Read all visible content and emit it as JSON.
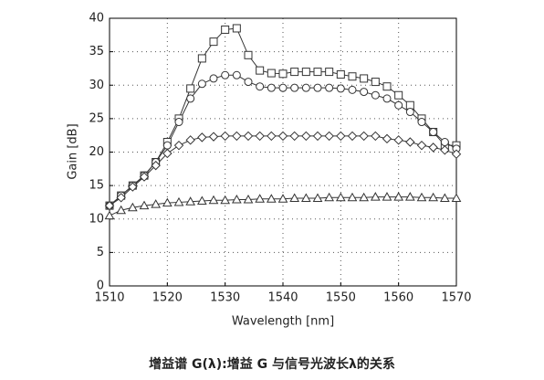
{
  "chart_data": {
    "type": "line",
    "xlabel": "Wavelength [nm]",
    "ylabel": "Gain [dB]",
    "caption": "增益谱 G(λ):增益 G 与信号光波长λ的关系",
    "x": [
      1510,
      1512,
      1514,
      1516,
      1518,
      1520,
      1522,
      1524,
      1526,
      1528,
      1530,
      1532,
      1534,
      1536,
      1538,
      1540,
      1542,
      1544,
      1546,
      1548,
      1550,
      1552,
      1554,
      1556,
      1558,
      1560,
      1562,
      1564,
      1566,
      1568,
      1570
    ],
    "series": [
      {
        "marker": "square",
        "color": "#333333",
        "values": [
          12,
          13.5,
          15,
          16.5,
          18.5,
          21.5,
          25,
          29.5,
          34,
          36.5,
          38.3,
          38.5,
          34.5,
          32.2,
          31.8,
          31.7,
          32,
          32,
          32,
          32,
          31.6,
          31.3,
          31,
          30.5,
          29.8,
          28.5,
          27,
          25,
          23,
          21,
          21
        ]
      },
      {
        "marker": "circle",
        "color": "#333333",
        "values": [
          12,
          13.5,
          15,
          16.5,
          18.5,
          21,
          24.5,
          28,
          30.2,
          31,
          31.5,
          31.5,
          30.5,
          29.8,
          29.6,
          29.6,
          29.6,
          29.6,
          29.6,
          29.6,
          29.5,
          29.3,
          29,
          28.5,
          28,
          27,
          26,
          24.5,
          23,
          21.5,
          20.5
        ]
      },
      {
        "marker": "diamond",
        "color": "#333333",
        "values": [
          12,
          13.2,
          14.8,
          16.3,
          18,
          19.8,
          21,
          21.8,
          22.2,
          22.3,
          22.4,
          22.4,
          22.4,
          22.4,
          22.4,
          22.4,
          22.4,
          22.4,
          22.4,
          22.4,
          22.4,
          22.4,
          22.4,
          22.4,
          22,
          21.8,
          21.5,
          21,
          20.7,
          20.3,
          19.7
        ]
      },
      {
        "marker": "triangle",
        "color": "#333333",
        "values": [
          10.5,
          11.3,
          11.7,
          12,
          12.2,
          12.4,
          12.5,
          12.6,
          12.7,
          12.8,
          12.8,
          12.9,
          12.9,
          13,
          13,
          13,
          13.1,
          13.1,
          13.1,
          13.2,
          13.2,
          13.2,
          13.2,
          13.3,
          13.3,
          13.3,
          13.3,
          13.2,
          13.2,
          13.1,
          13.1
        ]
      }
    ],
    "xlim": [
      1510,
      1570
    ],
    "xticks": [
      1510,
      1520,
      1530,
      1540,
      1550,
      1560,
      1570
    ],
    "ylim": [
      0,
      40
    ],
    "yticks": [
      0,
      5,
      10,
      15,
      20,
      25,
      30,
      35,
      40
    ],
    "grid": true
  }
}
